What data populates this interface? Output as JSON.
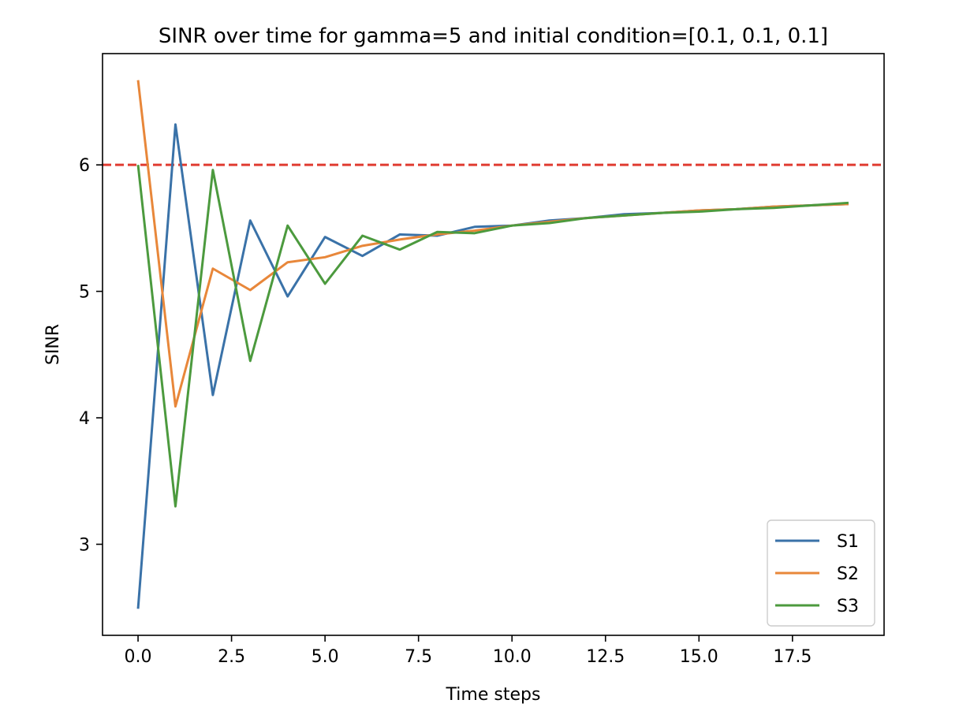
{
  "chart_data": {
    "type": "line",
    "title": "SINR over time for gamma=5 and initial condition=[0.1, 0.1, 0.1]",
    "xlabel": "Time steps",
    "ylabel": "SINR",
    "xlim": [
      -0.95,
      19.95
    ],
    "ylim": [
      2.28,
      6.88
    ],
    "xticks": [
      0.0,
      2.5,
      5.0,
      7.5,
      10.0,
      12.5,
      15.0,
      17.5
    ],
    "xtick_labels": [
      "0.0",
      "2.5",
      "5.0",
      "7.5",
      "10.0",
      "12.5",
      "15.0",
      "17.5"
    ],
    "yticks": [
      3,
      4,
      5,
      6
    ],
    "ytick_labels": [
      "3",
      "4",
      "5",
      "6"
    ],
    "grid": false,
    "legend_position": "lower-right",
    "x": [
      0,
      1,
      2,
      3,
      4,
      5,
      6,
      7,
      8,
      9,
      10,
      11,
      12,
      13,
      14,
      15,
      16,
      17,
      18,
      19
    ],
    "threshold": {
      "value": 6.0,
      "color": "#e03c31",
      "style": "dashed"
    },
    "series": [
      {
        "name": "S1",
        "color": "#3a72a8",
        "values": [
          2.49,
          6.32,
          4.18,
          5.56,
          4.96,
          5.43,
          5.28,
          5.45,
          5.44,
          5.51,
          5.52,
          5.56,
          5.58,
          5.61,
          5.62,
          5.64,
          5.65,
          5.67,
          5.68,
          5.69
        ]
      },
      {
        "name": "S2",
        "color": "#e8873a",
        "values": [
          6.67,
          4.09,
          5.18,
          5.01,
          5.23,
          5.27,
          5.36,
          5.41,
          5.45,
          5.48,
          5.52,
          5.55,
          5.58,
          5.6,
          5.62,
          5.64,
          5.65,
          5.67,
          5.68,
          5.69
        ]
      },
      {
        "name": "S3",
        "color": "#4c9a3e",
        "values": [
          6.0,
          3.3,
          5.96,
          4.45,
          5.52,
          5.06,
          5.44,
          5.33,
          5.47,
          5.46,
          5.52,
          5.54,
          5.58,
          5.6,
          5.62,
          5.63,
          5.65,
          5.66,
          5.68,
          5.7
        ]
      }
    ]
  }
}
